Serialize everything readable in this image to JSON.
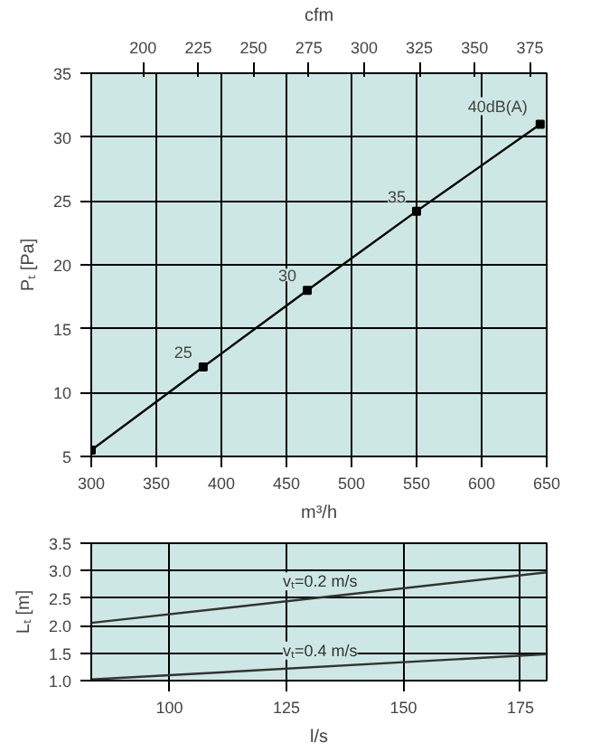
{
  "chart_data": [
    {
      "type": "line",
      "xlabel": "m³/h",
      "ylabel": "Pₜ [Pa]",
      "x2label": "cfm",
      "xlim": [
        300,
        650
      ],
      "xticks": [
        300,
        350,
        400,
        450,
        500,
        550,
        600,
        650
      ],
      "x2lim": [
        176.6,
        382.6
      ],
      "x2ticks": [
        200,
        225,
        250,
        275,
        300,
        325,
        350,
        375
      ],
      "ylim": [
        5,
        35
      ],
      "yticks": [
        5,
        10,
        15,
        20,
        25,
        30,
        35
      ],
      "grid": true,
      "marker": "square",
      "series": [
        {
          "color": "#000000",
          "x": [
            300,
            386,
            466,
            550,
            645
          ],
          "values": [
            5.5,
            12,
            18,
            24.2,
            31
          ]
        }
      ],
      "annotations": [
        {
          "text": "25",
          "x": 386,
          "y": 12
        },
        {
          "text": "30",
          "x": 466,
          "y": 18
        },
        {
          "text": "35",
          "x": 550,
          "y": 24.2
        },
        {
          "text": "40dB(A)",
          "x": 645,
          "y": 31
        }
      ]
    },
    {
      "type": "line",
      "xlabel": "l/s",
      "ylabel": "Lₜ [m]",
      "xlim": [
        83.3,
        180.6
      ],
      "xticks": [
        100,
        125,
        150,
        175
      ],
      "ylim": [
        1.0,
        3.5
      ],
      "yticks": [
        {
          "value": 1.0,
          "label": "1.0"
        },
        1.5,
        {
          "value": 2.0,
          "label": "2.0"
        },
        2.5,
        {
          "value": 3.0,
          "label": "3.0"
        },
        3.5
      ],
      "grid": true,
      "series": [
        {
          "name": "vₜ=0.2 m/s",
          "color": "#333333",
          "x": [
            83.3,
            180.6
          ],
          "values": [
            2.05,
            2.97
          ]
        },
        {
          "name": "vₜ=0.4 m/s",
          "color": "#333333",
          "x": [
            83.3,
            180.6
          ],
          "values": [
            1.02,
            1.48
          ]
        }
      ]
    }
  ]
}
